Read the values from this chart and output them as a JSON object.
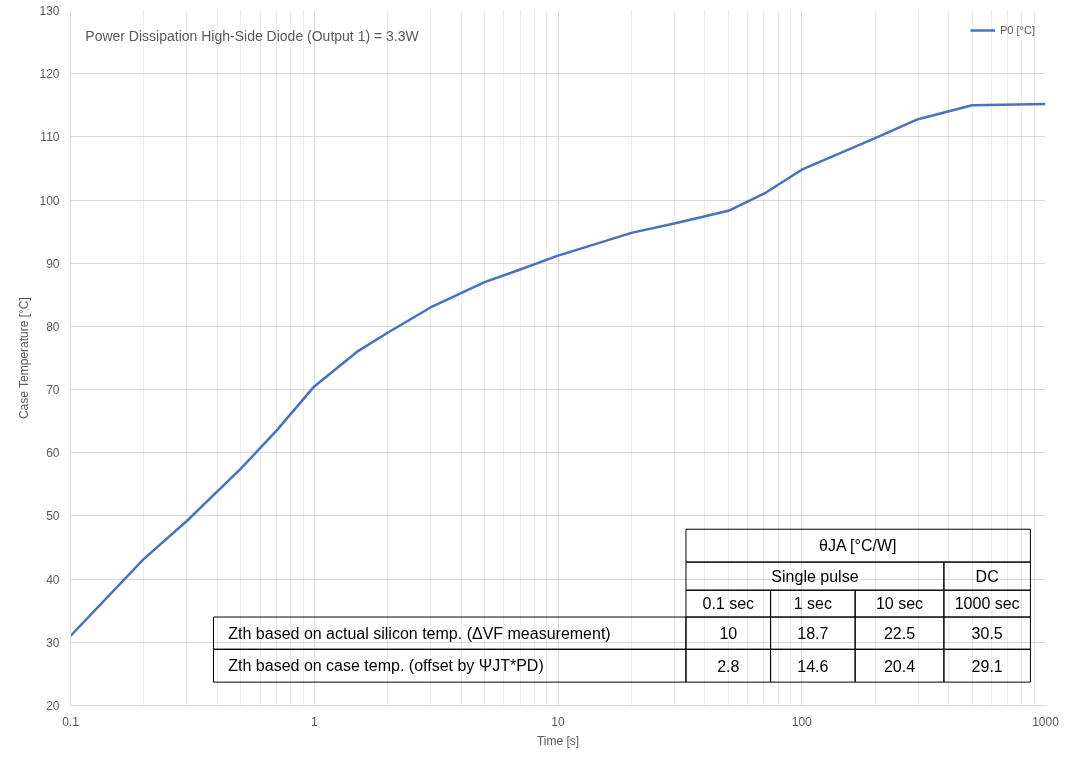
{
  "chart_data": {
    "type": "line",
    "title": "Power Dissipation High-Side Diode (Output 1) = 3.3W",
    "xlabel": "Time [s]",
    "ylabel": "Case Temperature [°C]",
    "log": "x",
    "grid": true,
    "legend": "top right",
    "xlim": [
      0.1,
      1000
    ],
    "xticks": [
      0.1,
      1,
      10,
      100,
      1000
    ],
    "ylim": [
      20,
      130
    ],
    "yticks": [
      20,
      30,
      40,
      50,
      60,
      70,
      80,
      90,
      100,
      110,
      120,
      130
    ],
    "series": [
      {
        "name": "P0 [°C]",
        "color": "#4472c4",
        "x": [
          0.1,
          0.2,
          0.3,
          0.5,
          0.7,
          1,
          1.5,
          2,
          3,
          5,
          7,
          10,
          15,
          20,
          30,
          50,
          70,
          100,
          200,
          300,
          500,
          1000
        ],
        "values": [
          31,
          43.2,
          49.2,
          57.5,
          63.5,
          70.5,
          76,
          79,
          83,
          87,
          89,
          91.2,
          93.3,
          94.8,
          96.3,
          98.3,
          101,
          104.8,
          109.8,
          112.8,
          115,
          115.2
        ]
      }
    ],
    "annotations": [
      "θJA [°C/W]",
      "Single pulse",
      "DC",
      "0.1 sec",
      "1 sec",
      "10 sec",
      "1000 sec",
      "Zth based on actual silicon temp. (ΔVF measurement)",
      "10",
      "18.7",
      "22.5",
      "30.5",
      "Zth based on case temp. (offset by ΨJT*PD)",
      "2.8",
      "14.6",
      "20.4",
      "29.1"
    ]
  }
}
